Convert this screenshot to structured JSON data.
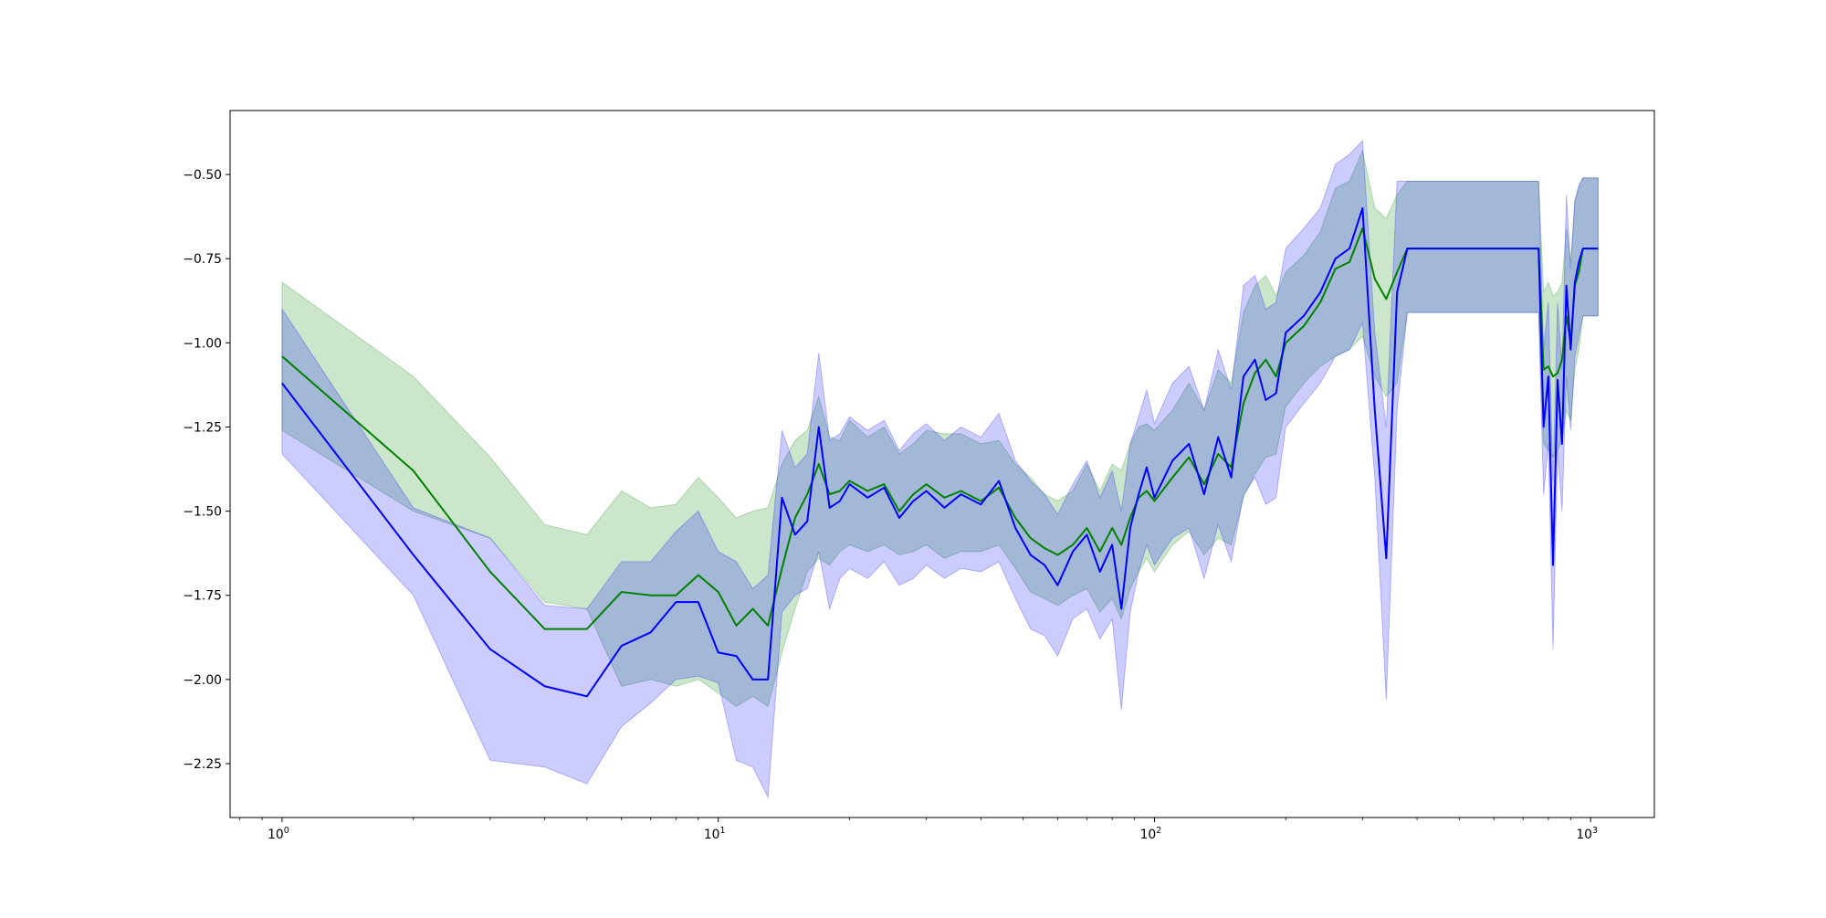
{
  "chart_data": {
    "type": "line",
    "title": "",
    "xlabel": "",
    "ylabel": "",
    "xscale": "log",
    "xlim": [
      0.76,
      1400
    ],
    "ylim": [
      -2.41,
      -0.31
    ],
    "grid": false,
    "legend": "none",
    "x_ticks": [
      {
        "value": 1,
        "base": "10",
        "exp": "0"
      },
      {
        "value": 10,
        "base": "10",
        "exp": "1"
      },
      {
        "value": 100,
        "base": "10",
        "exp": "2"
      },
      {
        "value": 1000,
        "base": "10",
        "exp": "3"
      }
    ],
    "y_ticks": [
      {
        "value": -0.5,
        "label": "−0.50"
      },
      {
        "value": -0.75,
        "label": "−0.75"
      },
      {
        "value": -1.0,
        "label": "−1.00"
      },
      {
        "value": -1.25,
        "label": "−1.25"
      },
      {
        "value": -1.5,
        "label": "−1.50"
      },
      {
        "value": -1.75,
        "label": "−1.75"
      },
      {
        "value": -2.0,
        "label": "−2.00"
      },
      {
        "value": -2.25,
        "label": "−2.25"
      }
    ],
    "series": [
      {
        "color": "#008000",
        "band_color": "#008000",
        "band_opacity": 0.2,
        "x": [
          1,
          2,
          3,
          4,
          5,
          6,
          7,
          8,
          9,
          10,
          11,
          12,
          13,
          14,
          15,
          16,
          17,
          18,
          19,
          20,
          22,
          24,
          26,
          28,
          30,
          33,
          36,
          40,
          44,
          48,
          52,
          56,
          60,
          65,
          70,
          75,
          80,
          84,
          88,
          92,
          96,
          100,
          110,
          120,
          130,
          140,
          150,
          160,
          170,
          180,
          190,
          200,
          220,
          240,
          260,
          280,
          300,
          320,
          340,
          360,
          380,
          500,
          760,
          780,
          800,
          820,
          840,
          860,
          880,
          900,
          920,
          940,
          960,
          1040
        ],
        "values": [
          -1.04,
          -1.38,
          -1.68,
          -1.85,
          -1.85,
          -1.74,
          -1.75,
          -1.75,
          -1.69,
          -1.74,
          -1.84,
          -1.79,
          -1.84,
          -1.67,
          -1.52,
          -1.45,
          -1.36,
          -1.45,
          -1.44,
          -1.41,
          -1.44,
          -1.42,
          -1.5,
          -1.45,
          -1.42,
          -1.46,
          -1.44,
          -1.47,
          -1.43,
          -1.52,
          -1.58,
          -1.61,
          -1.63,
          -1.6,
          -1.55,
          -1.62,
          -1.55,
          -1.6,
          -1.52,
          -1.46,
          -1.44,
          -1.47,
          -1.4,
          -1.34,
          -1.42,
          -1.33,
          -1.37,
          -1.18,
          -1.09,
          -1.05,
          -1.1,
          -1.0,
          -0.95,
          -0.88,
          -0.78,
          -0.76,
          -0.66,
          -0.81,
          -0.87,
          -0.79,
          -0.72,
          -0.72,
          -0.72,
          -1.08,
          -1.07,
          -1.1,
          -1.09,
          -1.05,
          -0.92,
          -1.0,
          -0.83,
          -0.79,
          -0.72,
          -0.72
        ],
        "lower": [
          -1.26,
          -1.5,
          -1.58,
          -1.77,
          -1.79,
          -2.02,
          -2.0,
          -2.02,
          -2.0,
          -2.04,
          -2.08,
          -2.05,
          -2.08,
          -1.92,
          -1.79,
          -1.68,
          -1.64,
          -1.66,
          -1.62,
          -1.6,
          -1.62,
          -1.6,
          -1.63,
          -1.62,
          -1.6,
          -1.64,
          -1.62,
          -1.62,
          -1.6,
          -1.67,
          -1.74,
          -1.76,
          -1.78,
          -1.75,
          -1.73,
          -1.8,
          -1.76,
          -1.82,
          -1.73,
          -1.68,
          -1.64,
          -1.68,
          -1.6,
          -1.56,
          -1.63,
          -1.58,
          -1.6,
          -1.46,
          -1.39,
          -1.34,
          -1.33,
          -1.19,
          -1.12,
          -1.07,
          -1.04,
          -1.02,
          -0.98,
          -1.1,
          -1.16,
          -1.12,
          -0.91,
          -0.91,
          -0.91,
          -1.3,
          -1.32,
          -1.34,
          -1.32,
          -1.29,
          -1.2,
          -1.23,
          -1.08,
          -1.02,
          -0.92,
          -0.92
        ],
        "upper": [
          -0.82,
          -1.1,
          -1.34,
          -1.54,
          -1.57,
          -1.44,
          -1.49,
          -1.48,
          -1.4,
          -1.46,
          -1.52,
          -1.5,
          -1.49,
          -1.36,
          -1.29,
          -1.26,
          -1.16,
          -1.28,
          -1.29,
          -1.23,
          -1.28,
          -1.25,
          -1.33,
          -1.3,
          -1.26,
          -1.27,
          -1.27,
          -1.3,
          -1.29,
          -1.36,
          -1.4,
          -1.45,
          -1.47,
          -1.44,
          -1.36,
          -1.44,
          -1.36,
          -1.38,
          -1.3,
          -1.25,
          -1.24,
          -1.26,
          -1.2,
          -1.12,
          -1.2,
          -1.08,
          -1.12,
          -0.91,
          -0.83,
          -0.8,
          -0.86,
          -0.79,
          -0.74,
          -0.67,
          -0.54,
          -0.52,
          -0.43,
          -0.6,
          -0.63,
          -0.56,
          -0.52,
          -0.52,
          -0.52,
          -0.85,
          -0.82,
          -0.86,
          -0.85,
          -0.82,
          -0.66,
          -0.76,
          -0.58,
          -0.54,
          -0.51,
          -0.51
        ]
      },
      {
        "color": "#0000ff",
        "band_color": "#0000ff",
        "band_opacity": 0.2,
        "x": [
          1,
          2,
          3,
          4,
          5,
          6,
          7,
          8,
          9,
          10,
          11,
          12,
          13,
          14,
          15,
          16,
          17,
          18,
          19,
          20,
          22,
          24,
          26,
          28,
          30,
          33,
          36,
          40,
          44,
          48,
          52,
          56,
          60,
          65,
          70,
          75,
          80,
          84,
          88,
          92,
          96,
          100,
          110,
          120,
          130,
          140,
          150,
          160,
          170,
          180,
          190,
          200,
          220,
          240,
          260,
          280,
          300,
          320,
          340,
          360,
          380,
          500,
          760,
          780,
          800,
          820,
          840,
          860,
          880,
          900,
          920,
          940,
          960,
          1040
        ],
        "values": [
          -1.12,
          -1.63,
          -1.91,
          -2.02,
          -2.05,
          -1.9,
          -1.86,
          -1.77,
          -1.77,
          -1.92,
          -1.93,
          -2.0,
          -2.0,
          -1.46,
          -1.57,
          -1.53,
          -1.25,
          -1.49,
          -1.47,
          -1.42,
          -1.46,
          -1.43,
          -1.52,
          -1.47,
          -1.44,
          -1.49,
          -1.45,
          -1.48,
          -1.41,
          -1.55,
          -1.63,
          -1.66,
          -1.72,
          -1.62,
          -1.57,
          -1.68,
          -1.6,
          -1.79,
          -1.55,
          -1.45,
          -1.37,
          -1.46,
          -1.35,
          -1.3,
          -1.45,
          -1.28,
          -1.4,
          -1.1,
          -1.05,
          -1.17,
          -1.15,
          -0.97,
          -0.92,
          -0.85,
          -0.75,
          -0.72,
          -0.6,
          -1.2,
          -1.64,
          -0.85,
          -0.72,
          -0.72,
          -0.72,
          -1.25,
          -1.1,
          -1.66,
          -1.11,
          -1.3,
          -0.83,
          -1.02,
          -0.82,
          -0.76,
          -0.72,
          -0.72
        ],
        "lower": [
          -1.33,
          -1.75,
          -2.24,
          -2.26,
          -2.31,
          -2.14,
          -2.07,
          -2.0,
          -1.99,
          -2.01,
          -2.24,
          -2.26,
          -2.35,
          -1.8,
          -1.75,
          -1.73,
          -1.62,
          -1.79,
          -1.7,
          -1.67,
          -1.7,
          -1.65,
          -1.72,
          -1.7,
          -1.66,
          -1.7,
          -1.67,
          -1.68,
          -1.65,
          -1.76,
          -1.85,
          -1.87,
          -1.93,
          -1.82,
          -1.79,
          -1.88,
          -1.82,
          -2.09,
          -1.8,
          -1.68,
          -1.6,
          -1.66,
          -1.58,
          -1.55,
          -1.7,
          -1.54,
          -1.65,
          -1.45,
          -1.4,
          -1.48,
          -1.46,
          -1.25,
          -1.18,
          -1.12,
          -1.04,
          -1.02,
          -0.94,
          -1.4,
          -2.06,
          -1.2,
          -0.91,
          -0.91,
          -0.91,
          -1.45,
          -1.3,
          -1.91,
          -1.32,
          -1.5,
          -1.1,
          -1.26,
          -1.04,
          -0.98,
          -0.92,
          -0.92
        ],
        "upper": [
          -0.9,
          -1.49,
          -1.58,
          -1.78,
          -1.79,
          -1.65,
          -1.65,
          -1.56,
          -1.5,
          -1.62,
          -1.65,
          -1.73,
          -1.69,
          -1.26,
          -1.37,
          -1.33,
          -1.03,
          -1.29,
          -1.27,
          -1.22,
          -1.26,
          -1.23,
          -1.32,
          -1.27,
          -1.24,
          -1.29,
          -1.25,
          -1.28,
          -1.21,
          -1.35,
          -1.41,
          -1.45,
          -1.51,
          -1.42,
          -1.35,
          -1.46,
          -1.38,
          -1.5,
          -1.3,
          -1.22,
          -1.14,
          -1.24,
          -1.12,
          -1.07,
          -1.2,
          -1.02,
          -1.14,
          -0.83,
          -0.8,
          -0.9,
          -0.88,
          -0.72,
          -0.66,
          -0.6,
          -0.47,
          -0.44,
          -0.4,
          -0.97,
          -1.25,
          -0.52,
          -0.52,
          -0.52,
          -0.52,
          -1.02,
          -0.88,
          -1.41,
          -0.88,
          -1.08,
          -0.56,
          -0.78,
          -0.58,
          -0.53,
          -0.51,
          -0.51
        ]
      }
    ]
  }
}
